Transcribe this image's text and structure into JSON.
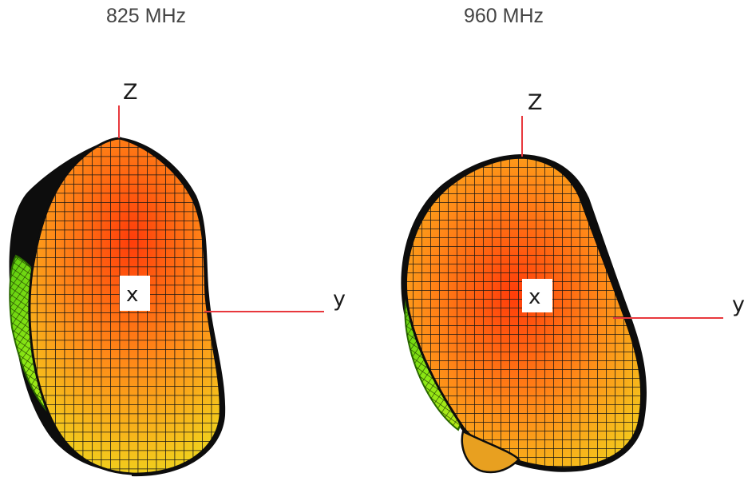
{
  "panels": [
    {
      "caption": "825 MHz",
      "axis_z": "Z",
      "axis_y": "y",
      "origin": "x"
    },
    {
      "caption": "960 MHz",
      "axis_z": "Z",
      "axis_y": "y",
      "origin": "x"
    }
  ],
  "colors": {
    "axis_line": "#e8383d",
    "mesh_line": "#111111",
    "surface_hot": "#ff4a10",
    "surface_mid": "#ff9a1a",
    "surface_warm": "#f2d21c",
    "side_lobe": "#7fe010",
    "side_lobe_edge": "#39b600"
  }
}
